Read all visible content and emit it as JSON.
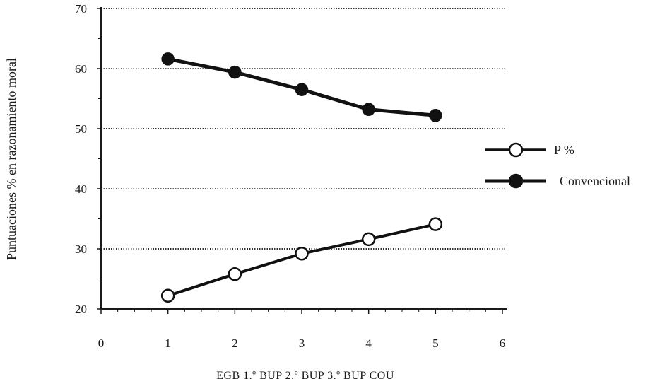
{
  "chart_data": {
    "type": "line",
    "title": "",
    "xlabel": "",
    "ylabel": "Puntuaciones % en razonamiento moral",
    "x_ticks": [
      0,
      1,
      2,
      3,
      4,
      5,
      6
    ],
    "y_ticks": [
      20,
      30,
      40,
      50,
      60,
      70
    ],
    "xlim": [
      0,
      6
    ],
    "ylim": [
      20,
      70
    ],
    "grid": "horizontal dotted",
    "legend_position": "right",
    "category_labels": [
      "EGB",
      "1.º BUP",
      "2.º BUP",
      "3.º BUP",
      "COU"
    ],
    "x": [
      1,
      2,
      3,
      4,
      5
    ],
    "series": [
      {
        "name": "P %",
        "marker": "open-circle",
        "values": [
          22.2,
          25.8,
          29.2,
          31.6,
          34.1
        ]
      },
      {
        "name": "Convencional",
        "marker": "filled-circle",
        "values": [
          61.6,
          59.4,
          56.5,
          53.2,
          52.2
        ]
      }
    ]
  }
}
